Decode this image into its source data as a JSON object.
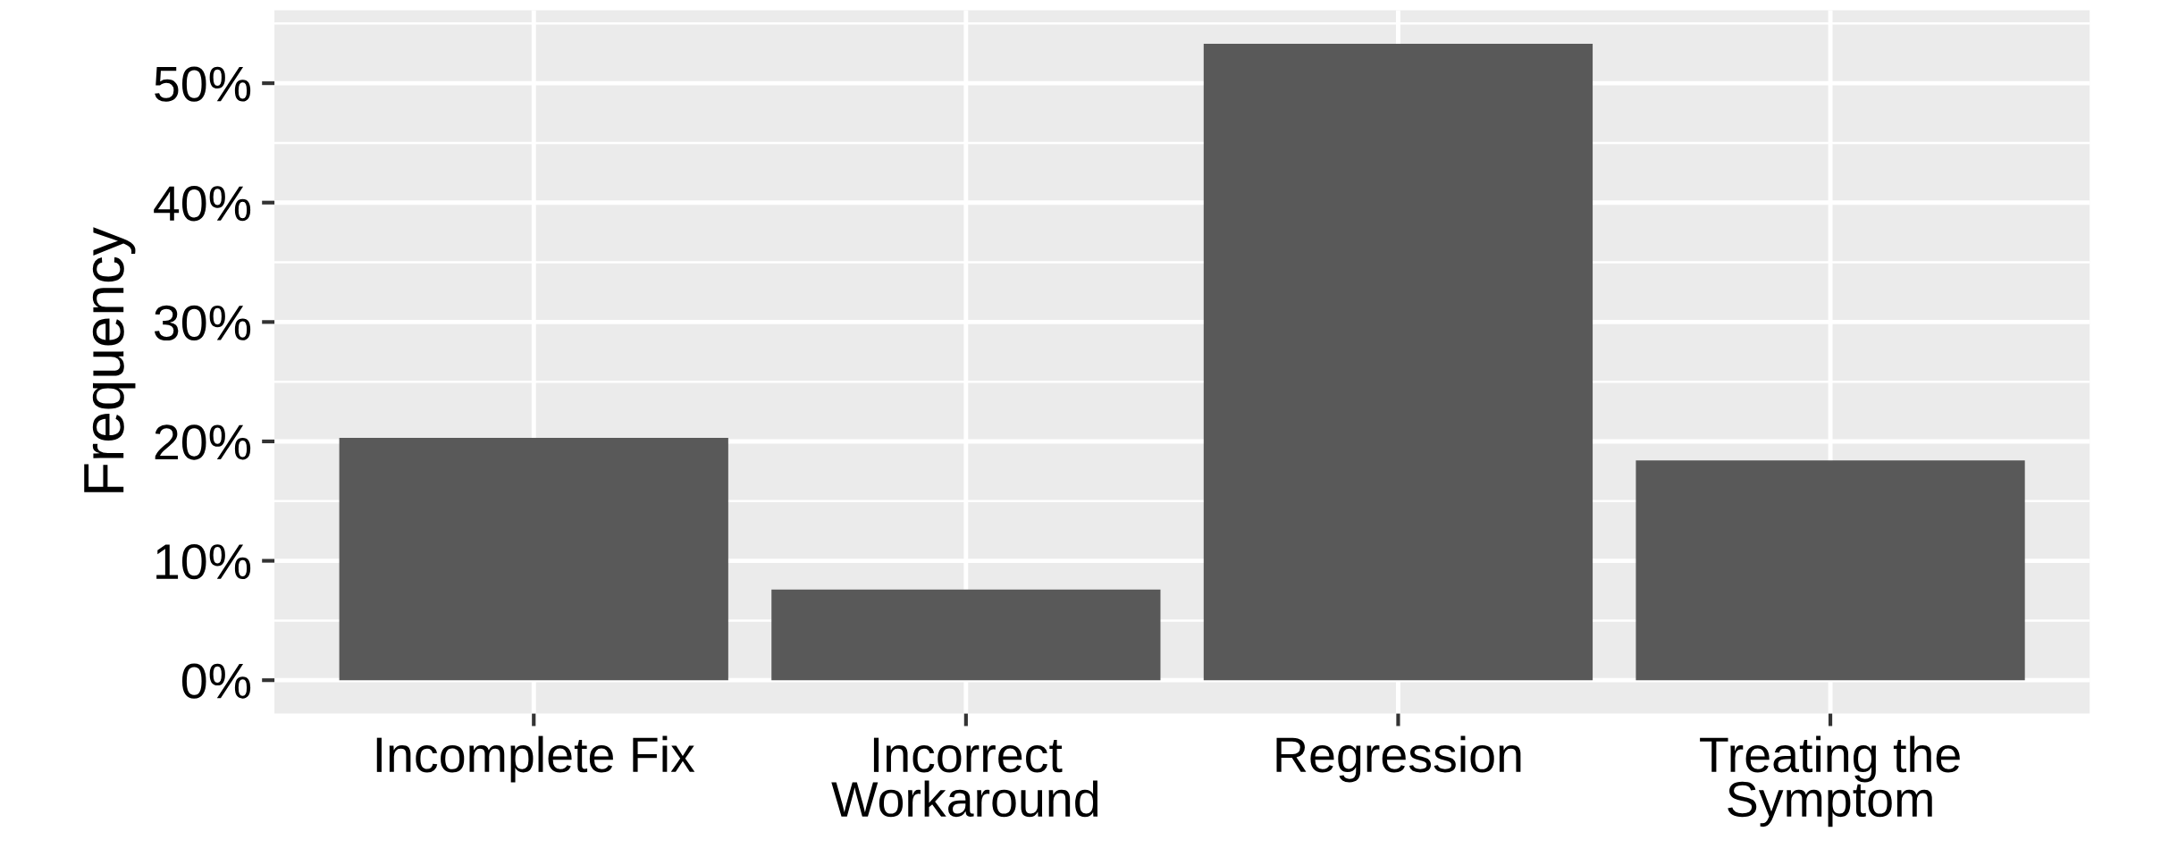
{
  "chart_data": {
    "type": "bar",
    "ylabel": "Frequency",
    "categories": [
      "Incomplete Fix",
      "Incorrect\nWorkaround",
      "Regression",
      "Treating the\nSymptom"
    ],
    "values": [
      20.3,
      7.6,
      53.3,
      18.4
    ],
    "color": "#595959",
    "ylim": [
      -2.8,
      56.1
    ],
    "yticks": [
      {
        "value": 0,
        "label": "0%"
      },
      {
        "value": 10,
        "label": "10%"
      },
      {
        "value": 20,
        "label": "20%"
      },
      {
        "value": 30,
        "label": "30%"
      },
      {
        "value": 40,
        "label": "40%"
      },
      {
        "value": 50,
        "label": "50%"
      }
    ],
    "grid": true
  }
}
